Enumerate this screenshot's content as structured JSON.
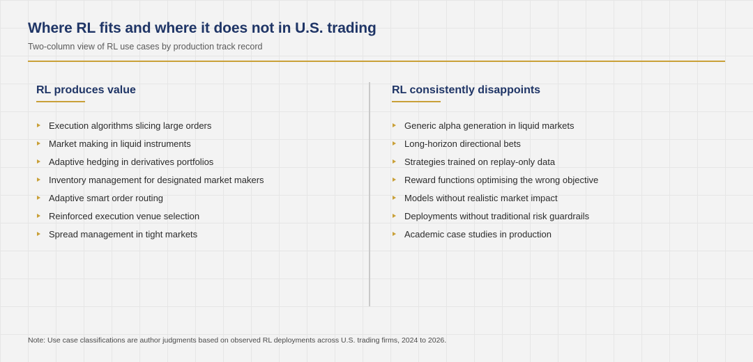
{
  "header": {
    "title": "Where RL fits and where it does not in U.S. trading",
    "subtitle": "Two-column view of RL use cases by production track record"
  },
  "columns": [
    {
      "title": "RL produces value",
      "items": [
        "Execution algorithms slicing large orders",
        "Market making in liquid instruments",
        "Adaptive hedging in derivatives portfolios",
        "Inventory management for designated market makers",
        "Adaptive smart order routing",
        "Reinforced execution venue selection",
        "Spread management in tight markets"
      ]
    },
    {
      "title": "RL consistently disappoints",
      "items": [
        "Generic alpha generation in liquid markets",
        "Long-horizon directional bets",
        "Strategies trained on replay-only data",
        "Reward functions optimising the wrong objective",
        "Models without realistic market impact",
        "Deployments without traditional risk guardrails",
        "Academic case studies in production"
      ]
    }
  ],
  "footer": {
    "note": "Note: Use case classifications are author judgments based on observed RL deployments across U.S. trading firms, 2024 to 2026."
  },
  "colors": {
    "title": "#1f3566",
    "accent": "#c9a038",
    "divider": "#c9c9c9",
    "background": "#f3f3f3"
  }
}
